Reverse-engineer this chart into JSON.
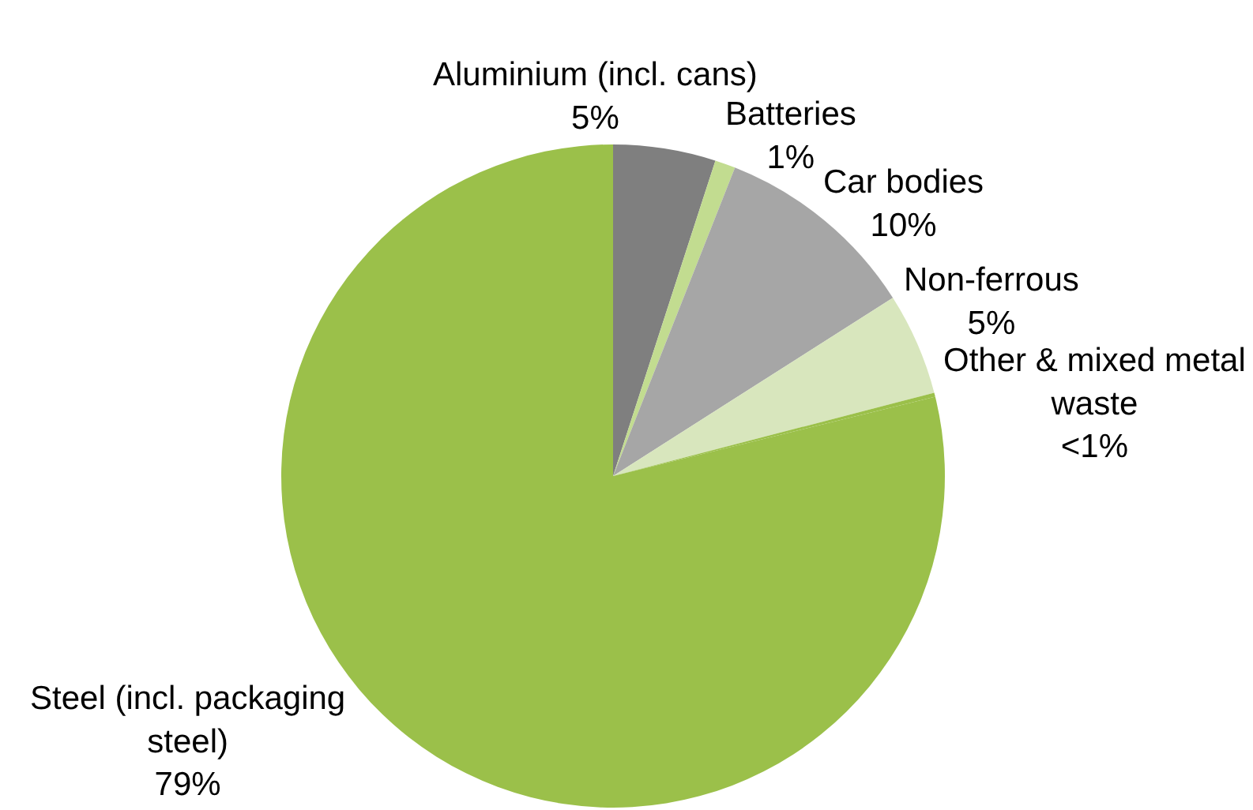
{
  "chart_data": {
    "type": "pie",
    "categories": [
      "Aluminium (incl. cans)",
      "Batteries",
      "Car bodies",
      "Non-ferrous",
      "Other & mixed metal waste",
      "Steel (incl. packaging steel)"
    ],
    "values": [
      5,
      1,
      10,
      5,
      0.2,
      79
    ],
    "value_labels": [
      "5%",
      "1%",
      "10%",
      "5%",
      "<1%",
      "79%"
    ],
    "colors": [
      "#7f7f7f",
      "#c2dc90",
      "#a6a6a6",
      "#d8e6bd",
      "#9bc04a",
      "#9bc04a"
    ],
    "legend": false
  }
}
